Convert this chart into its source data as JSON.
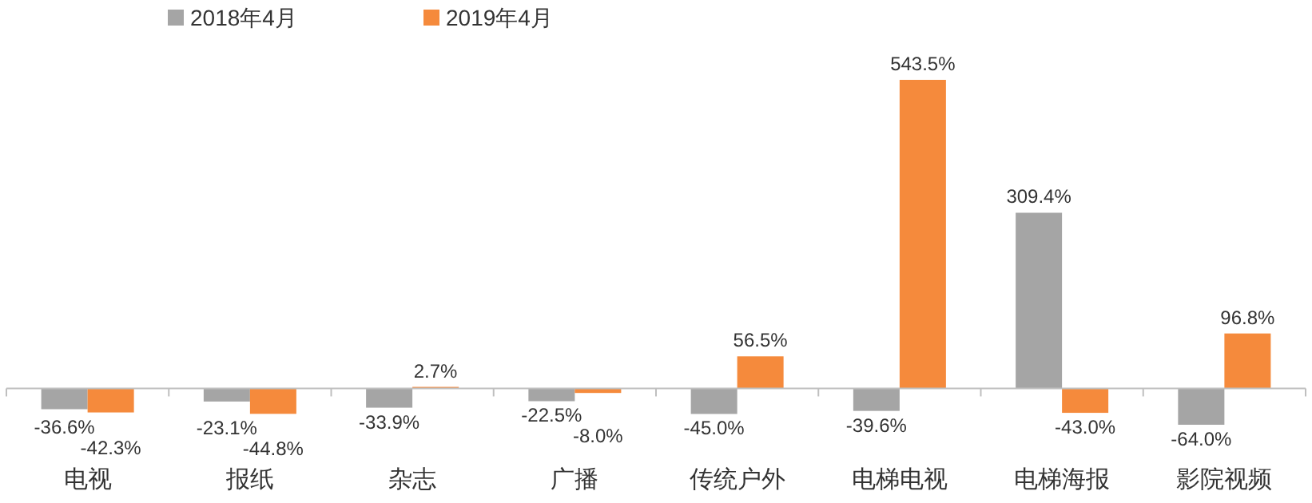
{
  "chart_data": {
    "type": "bar",
    "categories": [
      "电视",
      "报纸",
      "杂志",
      "广播",
      "传统户外",
      "电梯电视",
      "电梯海报",
      "影院视频"
    ],
    "series": [
      {
        "name": "2018年4月",
        "color": "#a5a5a5",
        "values": [
          -36.6,
          -23.1,
          -33.9,
          -22.5,
          -45.0,
          -39.6,
          309.4,
          -64.0
        ],
        "value_labels": [
          "-36.6%",
          "-23.1%",
          "-33.9%",
          "-22.5%",
          "-45.0%",
          "-39.6%",
          "309.4%",
          "-64.0%"
        ]
      },
      {
        "name": "2019年4月",
        "color": "#f58a3c",
        "values": [
          -42.3,
          -44.8,
          2.7,
          -8.0,
          56.5,
          543.5,
          -43.0,
          96.8
        ],
        "value_labels": [
          "-42.3%",
          "-44.8%",
          "2.7%",
          "-8.0%",
          "56.5%",
          "543.5%",
          "-43.0%",
          "96.8%"
        ]
      }
    ],
    "legend": "top left"
  }
}
